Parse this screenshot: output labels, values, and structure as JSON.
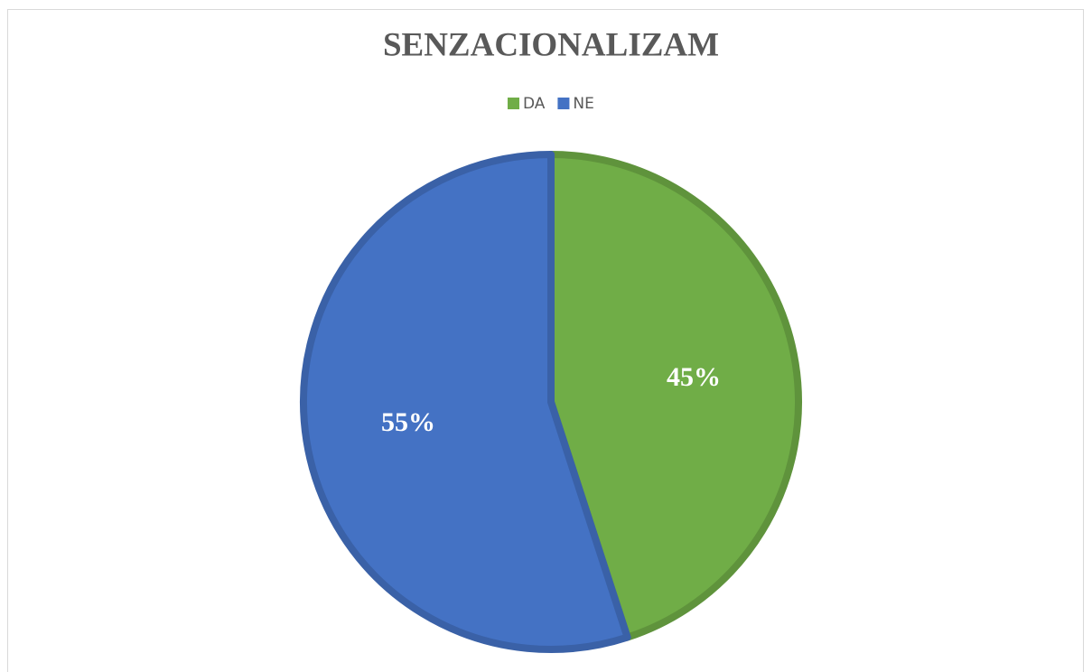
{
  "chart_data": {
    "type": "pie",
    "title": "SENZACIONALIZAM",
    "categories": [
      "DA",
      "NE"
    ],
    "values": [
      45,
      55
    ],
    "value_labels": [
      "45%",
      "55%"
    ],
    "colors": [
      "#70ad47",
      "#4472c4"
    ],
    "legend": "top"
  }
}
